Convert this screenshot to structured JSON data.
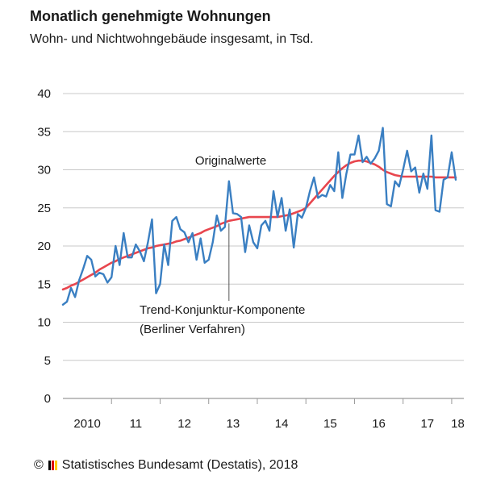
{
  "header": {
    "title": "Monatlich genehmigte Wohnungen",
    "subtitle": "Wohn- und Nichtwohngebäude insgesamt, in Tsd."
  },
  "footer": {
    "copyright_symbol": "©",
    "source": "Statistisches Bundesamt (Destatis), 2018"
  },
  "colors": {
    "original_series": "#3a7fc2",
    "trend_series": "#e8464e",
    "grid": "#c8c8c8"
  },
  "chart_data": {
    "type": "line",
    "ylim": [
      0,
      40
    ],
    "y_ticks": [
      0,
      5,
      10,
      15,
      20,
      25,
      30,
      35,
      40
    ],
    "x_range": [
      2010.0,
      2018.25
    ],
    "x_ticks": [
      {
        "x": 2010.5,
        "label": "2010"
      },
      {
        "x": 2011.5,
        "label": "11"
      },
      {
        "x": 2012.5,
        "label": "12"
      },
      {
        "x": 2013.5,
        "label": "13"
      },
      {
        "x": 2014.5,
        "label": "14"
      },
      {
        "x": 2015.5,
        "label": "15"
      },
      {
        "x": 2016.5,
        "label": "16"
      },
      {
        "x": 2017.5,
        "label": "17"
      },
      {
        "x": 2018.125,
        "label": "18"
      }
    ],
    "year_boundaries": [
      2011,
      2012,
      2013,
      2014,
      2015,
      2016,
      2017,
      2018
    ],
    "grid": "horizontal",
    "x_start": "2010-01",
    "series": [
      {
        "name": "Originalwerte",
        "values": [
          12.3,
          12.7,
          14.5,
          13.3,
          15.5,
          17.0,
          18.7,
          18.2,
          16.0,
          16.5,
          16.3,
          15.2,
          15.9,
          20.0,
          17.5,
          21.7,
          18.5,
          18.5,
          20.2,
          19.3,
          18.0,
          20.5,
          23.5,
          13.8,
          15.0,
          20.2,
          17.5,
          23.3,
          23.8,
          22.2,
          21.8,
          20.5,
          21.7,
          18.2,
          21.0,
          17.8,
          18.2,
          20.5,
          24.0,
          22.0,
          22.5,
          28.5,
          24.3,
          24.2,
          23.8,
          19.2,
          22.7,
          20.5,
          19.7,
          22.7,
          23.3,
          22.0,
          27.2,
          23.8,
          26.3,
          22.0,
          24.8,
          19.8,
          24.2,
          23.7,
          25.0,
          27.2,
          29.0,
          26.3,
          26.7,
          26.5,
          28.0,
          27.2,
          32.3,
          26.3,
          29.5,
          32.0,
          32.0,
          34.5,
          31.0,
          31.7,
          30.8,
          31.5,
          32.5,
          35.5,
          25.5,
          25.2,
          28.5,
          27.8,
          30.0,
          32.5,
          29.8,
          30.3,
          27.0,
          29.5,
          27.5,
          34.5,
          24.7,
          24.5,
          28.7,
          29.0,
          32.3,
          28.7
        ]
      },
      {
        "name": "Trend-Konjunktur-Komponente",
        "values": [
          14.3,
          14.5,
          14.8,
          15.0,
          15.3,
          15.6,
          15.9,
          16.2,
          16.5,
          16.9,
          17.2,
          17.5,
          17.8,
          18.0,
          18.3,
          18.5,
          18.7,
          18.9,
          19.1,
          19.3,
          19.5,
          19.7,
          19.8,
          20.0,
          20.1,
          20.2,
          20.3,
          20.4,
          20.6,
          20.7,
          20.9,
          21.1,
          21.3,
          21.5,
          21.7,
          22.0,
          22.2,
          22.4,
          22.6,
          22.9,
          23.1,
          23.3,
          23.4,
          23.5,
          23.6,
          23.7,
          23.8,
          23.8,
          23.8,
          23.8,
          23.8,
          23.8,
          23.8,
          23.8,
          23.9,
          24.0,
          24.1,
          24.3,
          24.5,
          24.7,
          25.0,
          25.6,
          26.2,
          26.8,
          27.4,
          28.0,
          28.6,
          29.2,
          29.7,
          30.2,
          30.6,
          30.9,
          31.1,
          31.2,
          31.2,
          31.1,
          30.9,
          30.7,
          30.4,
          30.0,
          29.7,
          29.5,
          29.3,
          29.2,
          29.1,
          29.1,
          29.1,
          29.1,
          29.1,
          29.1,
          29.1,
          29.1,
          29.0,
          29.0,
          29.0,
          29.0,
          29.0,
          29.0
        ]
      }
    ],
    "annotations": [
      {
        "text": "Originalwerte",
        "lines": [
          "Originalwerte"
        ]
      },
      {
        "text": "Trend-Konjunktur-Komponente (Berliner Verfahren)",
        "lines": [
          "Trend-Konjunktur-Komponente",
          "(Berliner Verfahren)"
        ]
      }
    ]
  }
}
